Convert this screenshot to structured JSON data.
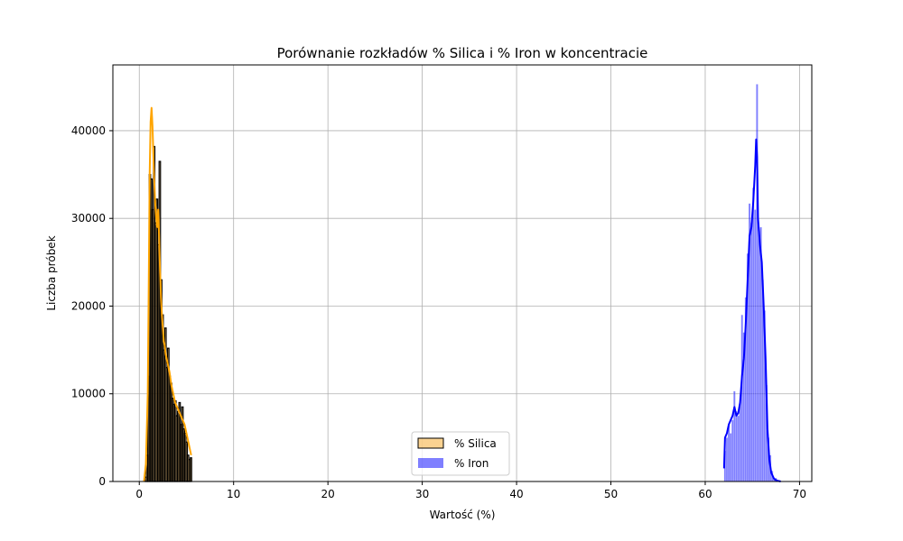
{
  "chart_data": {
    "type": "histogram",
    "title": "Porównanie rozkładów % Silica i % Iron w koncentracie",
    "xlabel": "Wartość (%)",
    "ylabel": "Liczba próbek",
    "xlim": [
      -2.8,
      71.3
    ],
    "ylim": [
      0,
      47500
    ],
    "xticks": [
      0,
      10,
      20,
      30,
      40,
      50,
      60,
      70
    ],
    "yticks": [
      0,
      10000,
      20000,
      30000,
      40000
    ],
    "grid": true,
    "legend_position": "lower-center",
    "series": [
      {
        "name": "% Silica",
        "kind": "histogram",
        "fill": "#f5a623",
        "fill_opacity": 0.5,
        "edge": "#000000",
        "bins": [
          [
            0.6,
            0.75,
            500
          ],
          [
            0.75,
            0.9,
            3000
          ],
          [
            0.9,
            1.05,
            12000
          ],
          [
            1.05,
            1.2,
            35000
          ],
          [
            1.2,
            1.35,
            34500
          ],
          [
            1.35,
            1.5,
            31000
          ],
          [
            1.5,
            1.65,
            38200
          ],
          [
            1.65,
            1.8,
            29500
          ],
          [
            1.8,
            1.95,
            32200
          ],
          [
            1.95,
            2.1,
            27000
          ],
          [
            2.1,
            2.25,
            36500
          ],
          [
            2.25,
            2.4,
            23000
          ],
          [
            2.4,
            2.55,
            19000
          ],
          [
            2.55,
            2.7,
            15000
          ],
          [
            2.7,
            2.85,
            17500
          ],
          [
            2.85,
            3.0,
            13000
          ],
          [
            3.0,
            3.15,
            15200
          ],
          [
            3.15,
            3.3,
            12000
          ],
          [
            3.3,
            3.45,
            11200
          ],
          [
            3.45,
            3.6,
            9500
          ],
          [
            3.6,
            3.75,
            8800
          ],
          [
            3.75,
            3.9,
            9200
          ],
          [
            3.9,
            4.05,
            7500
          ],
          [
            4.05,
            4.2,
            8000
          ],
          [
            4.2,
            4.35,
            9000
          ],
          [
            4.35,
            4.5,
            6500
          ],
          [
            4.5,
            4.65,
            8500
          ],
          [
            4.65,
            4.8,
            6000
          ],
          [
            4.8,
            4.95,
            5500
          ],
          [
            4.95,
            5.1,
            4500
          ],
          [
            5.1,
            5.25,
            3000
          ],
          [
            5.25,
            5.4,
            2500
          ],
          [
            5.4,
            5.55,
            2700
          ]
        ],
        "kde": {
          "color": "#ffa500",
          "x": [
            0.5,
            0.7,
            0.9,
            1.0,
            1.1,
            1.2,
            1.3,
            1.4,
            1.5,
            1.6,
            1.7,
            1.8,
            1.9,
            2.0,
            2.1,
            2.2,
            2.3,
            2.4,
            2.5,
            2.6,
            2.7,
            2.8,
            3.0,
            3.2,
            3.4,
            3.6,
            3.8,
            4.0,
            4.2,
            4.4,
            4.6,
            4.8,
            5.0,
            5.2,
            5.5
          ],
          "y": [
            0,
            2000,
            10000,
            22000,
            35000,
            41000,
            42600,
            40500,
            37000,
            34000,
            31500,
            30000,
            29000,
            31000,
            28000,
            24000,
            21000,
            19000,
            17500,
            16000,
            15500,
            14500,
            13500,
            12500,
            11000,
            10000,
            9000,
            8500,
            8000,
            7500,
            7000,
            6500,
            5500,
            4500,
            3000
          ]
        }
      },
      {
        "name": "% Iron",
        "kind": "histogram",
        "fill": "#0000ff",
        "fill_opacity": 0.5,
        "edge": "none",
        "bins": [
          [
            62.0,
            62.2,
            3500
          ],
          [
            62.2,
            62.4,
            5000
          ],
          [
            62.4,
            62.6,
            6500
          ],
          [
            62.6,
            62.8,
            5500
          ],
          [
            62.8,
            63.0,
            7000
          ],
          [
            63.0,
            63.2,
            10300
          ],
          [
            63.2,
            63.4,
            8000
          ],
          [
            63.4,
            63.6,
            7500
          ],
          [
            63.6,
            63.8,
            9000
          ],
          [
            63.8,
            64.0,
            19000
          ],
          [
            64.0,
            64.2,
            17000
          ],
          [
            64.2,
            64.4,
            21000
          ],
          [
            64.4,
            64.6,
            26000
          ],
          [
            64.6,
            64.8,
            31700
          ],
          [
            64.8,
            65.0,
            29500
          ],
          [
            65.0,
            65.2,
            33500
          ],
          [
            65.2,
            65.4,
            31000
          ],
          [
            65.4,
            65.6,
            45300
          ],
          [
            65.6,
            65.8,
            28500
          ],
          [
            65.8,
            66.0,
            29000
          ],
          [
            66.0,
            66.2,
            23000
          ],
          [
            66.2,
            66.4,
            19500
          ],
          [
            66.4,
            66.6,
            11000
          ],
          [
            66.6,
            66.8,
            5000
          ],
          [
            66.8,
            67.0,
            3000
          ],
          [
            67.0,
            67.2,
            1200
          ],
          [
            67.2,
            67.6,
            400
          ],
          [
            67.6,
            68.0,
            150
          ]
        ],
        "kde": {
          "color": "#0000ff",
          "x": [
            62.0,
            62.1,
            62.3,
            62.5,
            62.7,
            62.9,
            63.1,
            63.3,
            63.5,
            63.7,
            63.9,
            64.1,
            64.3,
            64.5,
            64.7,
            64.9,
            65.1,
            65.3,
            65.4,
            65.5,
            65.6,
            65.8,
            66.0,
            66.2,
            66.4,
            66.6,
            66.8,
            67.0,
            67.3,
            67.6,
            68.0
          ],
          "y": [
            1500,
            5000,
            5500,
            6500,
            7000,
            7500,
            8500,
            7500,
            7800,
            9000,
            12000,
            14000,
            18000,
            23000,
            28000,
            29000,
            32000,
            36000,
            39000,
            37000,
            30000,
            27000,
            25000,
            20000,
            14000,
            6000,
            2500,
            1000,
            300,
            100,
            0
          ]
        }
      }
    ]
  }
}
